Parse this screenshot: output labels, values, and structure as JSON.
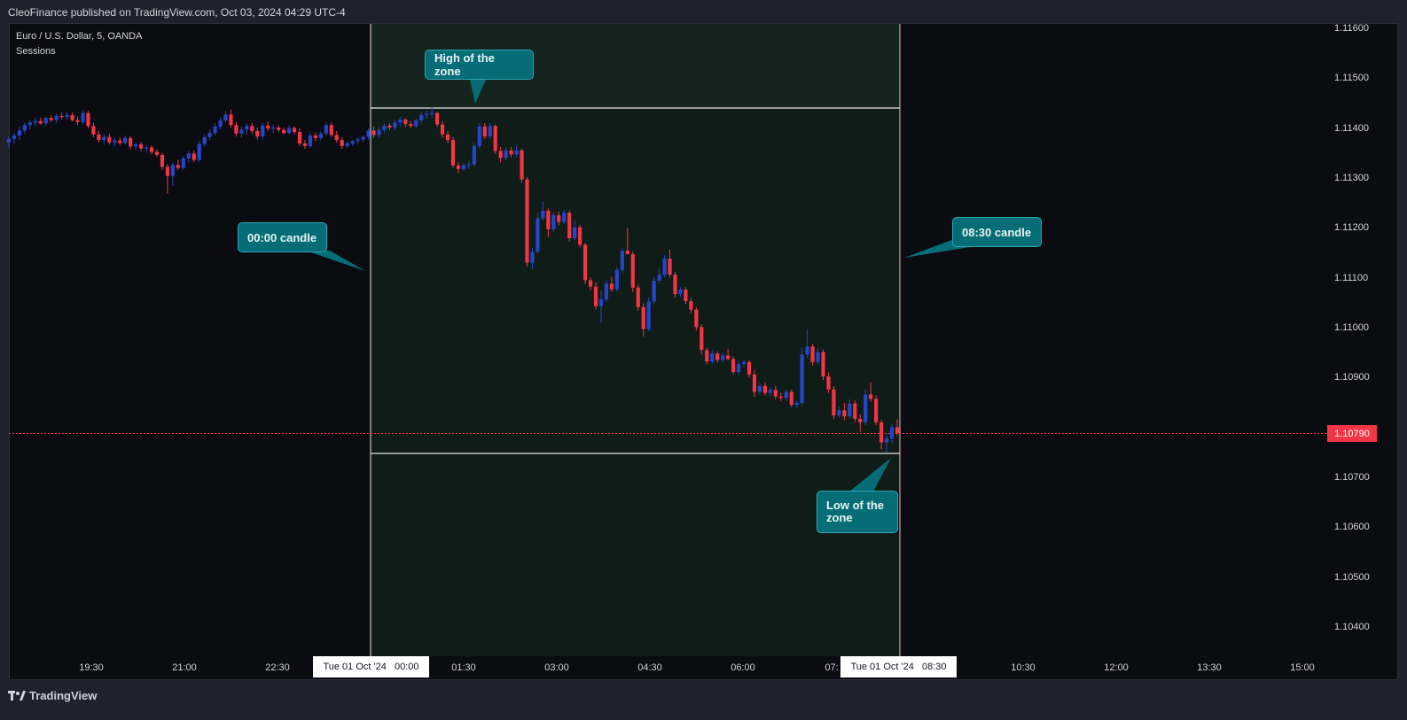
{
  "header": {
    "publisher_text": "CleoFinance published on TradingView.com, Oct 03, 2024 04:29 UTC-4"
  },
  "legend": {
    "symbol": "Euro / U.S. Dollar, 5, OANDA",
    "indicator": "Sessions"
  },
  "annotations": {
    "high": "High of the zone",
    "open_candle": "00:00 candle",
    "close_candle": "08:30 candle",
    "low": "Low of the zone"
  },
  "footer": {
    "brand": "TradingView"
  },
  "colors": {
    "up": "#2446c8",
    "down": "#f23645",
    "session_fill": "#14231c",
    "callout": "#066d77",
    "price_line": "#f23645"
  },
  "chart_data": {
    "type": "candlestick",
    "symbol": "EURUSD",
    "interval": "5",
    "y_ticks": [
      "1.11600",
      "1.11500",
      "1.11400",
      "1.11300",
      "1.11200",
      "1.11100",
      "1.11000",
      "1.10900",
      "1.10700",
      "1.10600",
      "1.10500",
      "1.10400"
    ],
    "x_ticks": [
      "19:30",
      "21:00",
      "22:30",
      "01:30",
      "03:00",
      "04:30",
      "06:00",
      "07:",
      "10:30",
      "12:00",
      "13:30",
      "15:00"
    ],
    "x_highlights": [
      "Tue 01 Oct '24   00:00",
      "Tue 01 Oct '24   08:30"
    ],
    "current_price": "1.10790",
    "zone": {
      "start": "00:00",
      "end": "08:30",
      "high": 1.11443,
      "low": 1.10752
    },
    "candles": [
      {
        "o": 1.11373,
        "h": 1.11385,
        "l": 1.11362,
        "c": 1.1138
      },
      {
        "o": 1.1138,
        "h": 1.11392,
        "l": 1.11371,
        "c": 1.11387
      },
      {
        "o": 1.11387,
        "h": 1.11404,
        "l": 1.11378,
        "c": 1.11397
      },
      {
        "o": 1.11397,
        "h": 1.11413,
        "l": 1.1139,
        "c": 1.11408
      },
      {
        "o": 1.11408,
        "h": 1.11418,
        "l": 1.11399,
        "c": 1.11413
      },
      {
        "o": 1.11413,
        "h": 1.11422,
        "l": 1.11405,
        "c": 1.11416
      },
      {
        "o": 1.11416,
        "h": 1.11423,
        "l": 1.11409,
        "c": 1.11411
      },
      {
        "o": 1.11411,
        "h": 1.11425,
        "l": 1.11406,
        "c": 1.11422
      },
      {
        "o": 1.11422,
        "h": 1.11428,
        "l": 1.11414,
        "c": 1.11418
      },
      {
        "o": 1.11418,
        "h": 1.11431,
        "l": 1.11412,
        "c": 1.11426
      },
      {
        "o": 1.11426,
        "h": 1.11433,
        "l": 1.11419,
        "c": 1.11424
      },
      {
        "o": 1.11424,
        "h": 1.11434,
        "l": 1.11418,
        "c": 1.11428
      },
      {
        "o": 1.11428,
        "h": 1.11433,
        "l": 1.11415,
        "c": 1.11418
      },
      {
        "o": 1.11418,
        "h": 1.11425,
        "l": 1.11408,
        "c": 1.11414
      },
      {
        "o": 1.11414,
        "h": 1.11437,
        "l": 1.11409,
        "c": 1.11432
      },
      {
        "o": 1.11432,
        "h": 1.11436,
        "l": 1.11402,
        "c": 1.11406
      },
      {
        "o": 1.11406,
        "h": 1.11412,
        "l": 1.11384,
        "c": 1.11389
      },
      {
        "o": 1.11389,
        "h": 1.11396,
        "l": 1.11373,
        "c": 1.11378
      },
      {
        "o": 1.11378,
        "h": 1.11389,
        "l": 1.1137,
        "c": 1.11384
      },
      {
        "o": 1.11384,
        "h": 1.11391,
        "l": 1.11369,
        "c": 1.11373
      },
      {
        "o": 1.11373,
        "h": 1.11382,
        "l": 1.11365,
        "c": 1.11377
      },
      {
        "o": 1.11377,
        "h": 1.11383,
        "l": 1.11368,
        "c": 1.11372
      },
      {
        "o": 1.11372,
        "h": 1.11387,
        "l": 1.11369,
        "c": 1.11382
      },
      {
        "o": 1.11382,
        "h": 1.11386,
        "l": 1.1136,
        "c": 1.11365
      },
      {
        "o": 1.11365,
        "h": 1.11373,
        "l": 1.11358,
        "c": 1.11369
      },
      {
        "o": 1.11369,
        "h": 1.11374,
        "l": 1.11356,
        "c": 1.11361
      },
      {
        "o": 1.11361,
        "h": 1.11368,
        "l": 1.11352,
        "c": 1.11363
      },
      {
        "o": 1.11363,
        "h": 1.11367,
        "l": 1.11349,
        "c": 1.11354
      },
      {
        "o": 1.11354,
        "h": 1.11359,
        "l": 1.11344,
        "c": 1.11348
      },
      {
        "o": 1.11348,
        "h": 1.11352,
        "l": 1.11318,
        "c": 1.11324
      },
      {
        "o": 1.11324,
        "h": 1.1133,
        "l": 1.11271,
        "c": 1.11306
      },
      {
        "o": 1.11306,
        "h": 1.11333,
        "l": 1.11286,
        "c": 1.11328
      },
      {
        "o": 1.11328,
        "h": 1.11338,
        "l": 1.11318,
        "c": 1.11322
      },
      {
        "o": 1.11322,
        "h": 1.11346,
        "l": 1.11318,
        "c": 1.11341
      },
      {
        "o": 1.11341,
        "h": 1.11356,
        "l": 1.11333,
        "c": 1.11351
      },
      {
        "o": 1.11351,
        "h": 1.11357,
        "l": 1.11334,
        "c": 1.11338
      },
      {
        "o": 1.11338,
        "h": 1.11376,
        "l": 1.11334,
        "c": 1.1137
      },
      {
        "o": 1.1137,
        "h": 1.11388,
        "l": 1.11365,
        "c": 1.11384
      },
      {
        "o": 1.11384,
        "h": 1.11399,
        "l": 1.11378,
        "c": 1.11392
      },
      {
        "o": 1.11392,
        "h": 1.11411,
        "l": 1.11388,
        "c": 1.11405
      },
      {
        "o": 1.11405,
        "h": 1.11423,
        "l": 1.11399,
        "c": 1.11417
      },
      {
        "o": 1.11417,
        "h": 1.11436,
        "l": 1.11413,
        "c": 1.11429
      },
      {
        "o": 1.11429,
        "h": 1.11439,
        "l": 1.11402,
        "c": 1.11408
      },
      {
        "o": 1.11408,
        "h": 1.11414,
        "l": 1.11385,
        "c": 1.11391
      },
      {
        "o": 1.11391,
        "h": 1.11405,
        "l": 1.11383,
        "c": 1.11399
      },
      {
        "o": 1.11399,
        "h": 1.11411,
        "l": 1.11389,
        "c": 1.11406
      },
      {
        "o": 1.11406,
        "h": 1.11412,
        "l": 1.1139,
        "c": 1.11396
      },
      {
        "o": 1.11396,
        "h": 1.11403,
        "l": 1.11379,
        "c": 1.11385
      },
      {
        "o": 1.11385,
        "h": 1.11412,
        "l": 1.11379,
        "c": 1.11407
      },
      {
        "o": 1.11407,
        "h": 1.11415,
        "l": 1.11396,
        "c": 1.11401
      },
      {
        "o": 1.11401,
        "h": 1.11409,
        "l": 1.11392,
        "c": 1.11403
      },
      {
        "o": 1.11403,
        "h": 1.11407,
        "l": 1.11394,
        "c": 1.11398
      },
      {
        "o": 1.11398,
        "h": 1.11403,
        "l": 1.11389,
        "c": 1.11392
      },
      {
        "o": 1.11392,
        "h": 1.11407,
        "l": 1.11389,
        "c": 1.11402
      },
      {
        "o": 1.11402,
        "h": 1.11405,
        "l": 1.1139,
        "c": 1.11394
      },
      {
        "o": 1.11394,
        "h": 1.11401,
        "l": 1.11366,
        "c": 1.11371
      },
      {
        "o": 1.11371,
        "h": 1.11378,
        "l": 1.1136,
        "c": 1.11366
      },
      {
        "o": 1.11366,
        "h": 1.11391,
        "l": 1.11362,
        "c": 1.11387
      },
      {
        "o": 1.11387,
        "h": 1.11393,
        "l": 1.11376,
        "c": 1.11382
      },
      {
        "o": 1.11382,
        "h": 1.11395,
        "l": 1.11377,
        "c": 1.11391
      },
      {
        "o": 1.11391,
        "h": 1.11414,
        "l": 1.11386,
        "c": 1.11408
      },
      {
        "o": 1.11408,
        "h": 1.11413,
        "l": 1.11384,
        "c": 1.11388
      },
      {
        "o": 1.11388,
        "h": 1.11396,
        "l": 1.11372,
        "c": 1.11378
      },
      {
        "o": 1.11378,
        "h": 1.11384,
        "l": 1.1136,
        "c": 1.11366
      },
      {
        "o": 1.11366,
        "h": 1.11376,
        "l": 1.11362,
        "c": 1.11371
      },
      {
        "o": 1.11371,
        "h": 1.11378,
        "l": 1.11366,
        "c": 1.11376
      },
      {
        "o": 1.11376,
        "h": 1.11383,
        "l": 1.1137,
        "c": 1.11379
      },
      {
        "o": 1.11379,
        "h": 1.11387,
        "l": 1.11374,
        "c": 1.11384
      },
      {
        "o": 1.11384,
        "h": 1.11401,
        "l": 1.11379,
        "c": 1.11397
      },
      {
        "o": 1.11397,
        "h": 1.11405,
        "l": 1.11382,
        "c": 1.11388
      },
      {
        "o": 1.11388,
        "h": 1.11403,
        "l": 1.11383,
        "c": 1.11398
      },
      {
        "o": 1.11398,
        "h": 1.11411,
        "l": 1.11393,
        "c": 1.11407
      },
      {
        "o": 1.11407,
        "h": 1.11412,
        "l": 1.11398,
        "c": 1.11403
      },
      {
        "o": 1.11403,
        "h": 1.11418,
        "l": 1.11398,
        "c": 1.11413
      },
      {
        "o": 1.11413,
        "h": 1.11424,
        "l": 1.11406,
        "c": 1.11419
      },
      {
        "o": 1.11419,
        "h": 1.11422,
        "l": 1.11404,
        "c": 1.1141
      },
      {
        "o": 1.1141,
        "h": 1.11416,
        "l": 1.11402,
        "c": 1.11406
      },
      {
        "o": 1.11406,
        "h": 1.11421,
        "l": 1.11402,
        "c": 1.11417
      },
      {
        "o": 1.11417,
        "h": 1.11433,
        "l": 1.11411,
        "c": 1.11428
      },
      {
        "o": 1.11428,
        "h": 1.11437,
        "l": 1.11421,
        "c": 1.1143
      },
      {
        "o": 1.1143,
        "h": 1.11443,
        "l": 1.11424,
        "c": 1.11432
      },
      {
        "o": 1.11432,
        "h": 1.11435,
        "l": 1.11404,
        "c": 1.11409
      },
      {
        "o": 1.11409,
        "h": 1.11415,
        "l": 1.11383,
        "c": 1.11389
      },
      {
        "o": 1.11389,
        "h": 1.11396,
        "l": 1.11372,
        "c": 1.11378
      },
      {
        "o": 1.11378,
        "h": 1.11384,
        "l": 1.11322,
        "c": 1.11327
      },
      {
        "o": 1.11327,
        "h": 1.11333,
        "l": 1.11311,
        "c": 1.1132
      },
      {
        "o": 1.1132,
        "h": 1.11332,
        "l": 1.11316,
        "c": 1.11327
      },
      {
        "o": 1.11327,
        "h": 1.11335,
        "l": 1.1132,
        "c": 1.11329
      },
      {
        "o": 1.11329,
        "h": 1.11372,
        "l": 1.11325,
        "c": 1.11366
      },
      {
        "o": 1.11366,
        "h": 1.11412,
        "l": 1.11361,
        "c": 1.11405
      },
      {
        "o": 1.11405,
        "h": 1.11412,
        "l": 1.1138,
        "c": 1.11385
      },
      {
        "o": 1.11385,
        "h": 1.11412,
        "l": 1.1138,
        "c": 1.11406
      },
      {
        "o": 1.11406,
        "h": 1.11409,
        "l": 1.1135,
        "c": 1.11356
      },
      {
        "o": 1.11356,
        "h": 1.11364,
        "l": 1.11333,
        "c": 1.11342
      },
      {
        "o": 1.11342,
        "h": 1.11363,
        "l": 1.11337,
        "c": 1.11357
      },
      {
        "o": 1.11357,
        "h": 1.11364,
        "l": 1.11343,
        "c": 1.11349
      },
      {
        "o": 1.11349,
        "h": 1.11367,
        "l": 1.11344,
        "c": 1.11357
      },
      {
        "o": 1.11357,
        "h": 1.11361,
        "l": 1.11292,
        "c": 1.11299
      },
      {
        "o": 1.11299,
        "h": 1.11304,
        "l": 1.11124,
        "c": 1.11132
      },
      {
        "o": 1.11132,
        "h": 1.11162,
        "l": 1.11119,
        "c": 1.11154
      },
      {
        "o": 1.11154,
        "h": 1.11232,
        "l": 1.11149,
        "c": 1.11221
      },
      {
        "o": 1.11221,
        "h": 1.11255,
        "l": 1.11217,
        "c": 1.11236
      },
      {
        "o": 1.11236,
        "h": 1.11241,
        "l": 1.11183,
        "c": 1.11199
      },
      {
        "o": 1.11199,
        "h": 1.11233,
        "l": 1.11194,
        "c": 1.11227
      },
      {
        "o": 1.11227,
        "h": 1.11234,
        "l": 1.11207,
        "c": 1.11214
      },
      {
        "o": 1.11214,
        "h": 1.11238,
        "l": 1.11209,
        "c": 1.11232
      },
      {
        "o": 1.11232,
        "h": 1.11237,
        "l": 1.11174,
        "c": 1.11181
      },
      {
        "o": 1.11181,
        "h": 1.11217,
        "l": 1.11177,
        "c": 1.11203
      },
      {
        "o": 1.11203,
        "h": 1.11208,
        "l": 1.11163,
        "c": 1.11168
      },
      {
        "o": 1.11168,
        "h": 1.11172,
        "l": 1.11089,
        "c": 1.11097
      },
      {
        "o": 1.11097,
        "h": 1.11103,
        "l": 1.11077,
        "c": 1.11084
      },
      {
        "o": 1.11084,
        "h": 1.11093,
        "l": 1.11038,
        "c": 1.11045
      },
      {
        "o": 1.11045,
        "h": 1.11076,
        "l": 1.11011,
        "c": 1.11059
      },
      {
        "o": 1.11059,
        "h": 1.11097,
        "l": 1.11053,
        "c": 1.1109
      },
      {
        "o": 1.1109,
        "h": 1.11104,
        "l": 1.11074,
        "c": 1.11079
      },
      {
        "o": 1.11079,
        "h": 1.11123,
        "l": 1.11074,
        "c": 1.11117
      },
      {
        "o": 1.11117,
        "h": 1.11162,
        "l": 1.11112,
        "c": 1.11156
      },
      {
        "o": 1.11156,
        "h": 1.11202,
        "l": 1.1115,
        "c": 1.11149
      },
      {
        "o": 1.11149,
        "h": 1.11154,
        "l": 1.11073,
        "c": 1.11082
      },
      {
        "o": 1.11082,
        "h": 1.11088,
        "l": 1.11036,
        "c": 1.11043
      },
      {
        "o": 1.11043,
        "h": 1.11051,
        "l": 1.10984,
        "c": 1.10999
      },
      {
        "o": 1.10999,
        "h": 1.11062,
        "l": 1.10994,
        "c": 1.11054
      },
      {
        "o": 1.11054,
        "h": 1.11102,
        "l": 1.11048,
        "c": 1.11096
      },
      {
        "o": 1.11096,
        "h": 1.11122,
        "l": 1.11091,
        "c": 1.11108
      },
      {
        "o": 1.11108,
        "h": 1.11147,
        "l": 1.11103,
        "c": 1.1114
      },
      {
        "o": 1.1114,
        "h": 1.11158,
        "l": 1.11102,
        "c": 1.11108
      },
      {
        "o": 1.11108,
        "h": 1.11114,
        "l": 1.11062,
        "c": 1.11069
      },
      {
        "o": 1.11069,
        "h": 1.11083,
        "l": 1.11063,
        "c": 1.11078
      },
      {
        "o": 1.11078,
        "h": 1.11083,
        "l": 1.11049,
        "c": 1.11055
      },
      {
        "o": 1.11055,
        "h": 1.11062,
        "l": 1.11031,
        "c": 1.11038
      },
      {
        "o": 1.11038,
        "h": 1.11043,
        "l": 1.10996,
        "c": 1.11003
      },
      {
        "o": 1.11003,
        "h": 1.11009,
        "l": 1.10948,
        "c": 1.10957
      },
      {
        "o": 1.10957,
        "h": 1.10962,
        "l": 1.10928,
        "c": 1.10934
      },
      {
        "o": 1.10934,
        "h": 1.10956,
        "l": 1.10929,
        "c": 1.1095
      },
      {
        "o": 1.1095,
        "h": 1.10954,
        "l": 1.10931,
        "c": 1.10937
      },
      {
        "o": 1.10937,
        "h": 1.10951,
        "l": 1.10932,
        "c": 1.10946
      },
      {
        "o": 1.10946,
        "h": 1.10959,
        "l": 1.10936,
        "c": 1.10939
      },
      {
        "o": 1.10939,
        "h": 1.10944,
        "l": 1.10908,
        "c": 1.10913
      },
      {
        "o": 1.10913,
        "h": 1.10936,
        "l": 1.10908,
        "c": 1.10929
      },
      {
        "o": 1.10929,
        "h": 1.10938,
        "l": 1.10923,
        "c": 1.10933
      },
      {
        "o": 1.10933,
        "h": 1.10937,
        "l": 1.10902,
        "c": 1.10908
      },
      {
        "o": 1.10908,
        "h": 1.10917,
        "l": 1.10863,
        "c": 1.10873
      },
      {
        "o": 1.10873,
        "h": 1.10891,
        "l": 1.10868,
        "c": 1.10885
      },
      {
        "o": 1.10885,
        "h": 1.10892,
        "l": 1.10866,
        "c": 1.10871
      },
      {
        "o": 1.10871,
        "h": 1.10882,
        "l": 1.10865,
        "c": 1.10877
      },
      {
        "o": 1.10877,
        "h": 1.10885,
        "l": 1.10858,
        "c": 1.10864
      },
      {
        "o": 1.10864,
        "h": 1.10872,
        "l": 1.10855,
        "c": 1.10861
      },
      {
        "o": 1.10861,
        "h": 1.10878,
        "l": 1.10855,
        "c": 1.10873
      },
      {
        "o": 1.10873,
        "h": 1.10878,
        "l": 1.10842,
        "c": 1.10847
      },
      {
        "o": 1.10847,
        "h": 1.10856,
        "l": 1.10841,
        "c": 1.10851
      },
      {
        "o": 1.10851,
        "h": 1.10962,
        "l": 1.10846,
        "c": 1.10948
      },
      {
        "o": 1.10948,
        "h": 1.10999,
        "l": 1.10941,
        "c": 1.10964
      },
      {
        "o": 1.10964,
        "h": 1.10969,
        "l": 1.10926,
        "c": 1.10933
      },
      {
        "o": 1.10933,
        "h": 1.10961,
        "l": 1.10928,
        "c": 1.10953
      },
      {
        "o": 1.10953,
        "h": 1.10958,
        "l": 1.10897,
        "c": 1.10904
      },
      {
        "o": 1.10904,
        "h": 1.10912,
        "l": 1.10871,
        "c": 1.10878
      },
      {
        "o": 1.10878,
        "h": 1.10884,
        "l": 1.10818,
        "c": 1.10826
      },
      {
        "o": 1.10826,
        "h": 1.10844,
        "l": 1.10821,
        "c": 1.10836
      },
      {
        "o": 1.10836,
        "h": 1.10851,
        "l": 1.10816,
        "c": 1.10824
      },
      {
        "o": 1.10824,
        "h": 1.10858,
        "l": 1.10819,
        "c": 1.1085
      },
      {
        "o": 1.1085,
        "h": 1.10856,
        "l": 1.10812,
        "c": 1.10819
      },
      {
        "o": 1.10819,
        "h": 1.10828,
        "l": 1.10793,
        "c": 1.10812
      },
      {
        "o": 1.10812,
        "h": 1.10878,
        "l": 1.10806,
        "c": 1.10868
      },
      {
        "o": 1.10868,
        "h": 1.10892,
        "l": 1.10853,
        "c": 1.10859
      },
      {
        "o": 1.10859,
        "h": 1.10866,
        "l": 1.10806,
        "c": 1.10812
      },
      {
        "o": 1.10812,
        "h": 1.10817,
        "l": 1.10758,
        "c": 1.10772
      },
      {
        "o": 1.10772,
        "h": 1.10789,
        "l": 1.10752,
        "c": 1.1078
      },
      {
        "o": 1.1078,
        "h": 1.10808,
        "l": 1.1077,
        "c": 1.10802
      },
      {
        "o": 1.10802,
        "h": 1.10818,
        "l": 1.10785,
        "c": 1.1079
      }
    ]
  }
}
